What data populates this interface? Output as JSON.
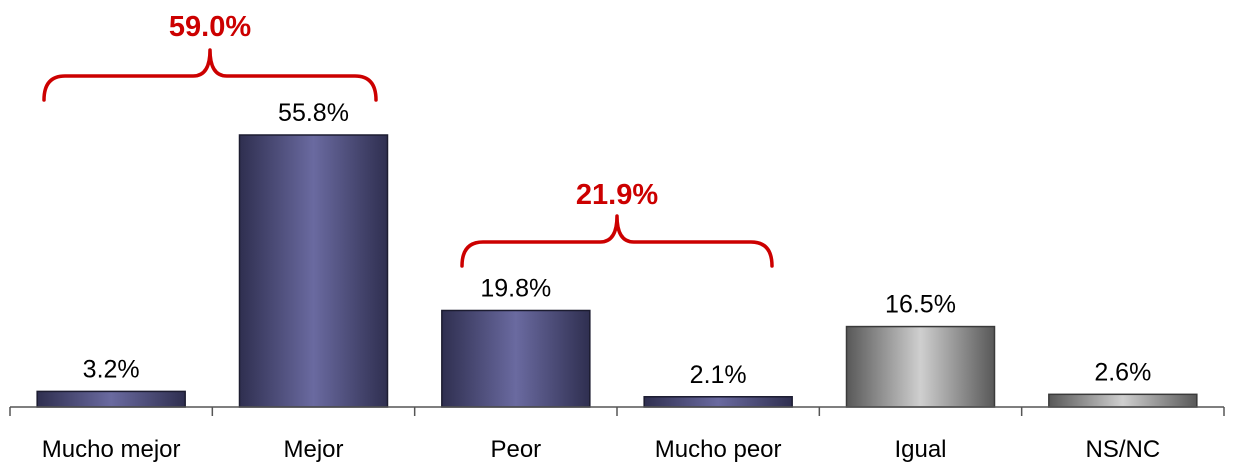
{
  "chart_data": {
    "type": "bar",
    "title": "",
    "xlabel": "",
    "ylabel": "",
    "categories": [
      "Mucho mejor",
      "Mejor",
      "Peor",
      "Mucho peor",
      "Igual",
      "NS/NC"
    ],
    "values": [
      3.2,
      55.8,
      19.8,
      2.1,
      16.5,
      2.6
    ],
    "value_labels": [
      "3.2%",
      "55.8%",
      "19.8%",
      "2.1%",
      "16.5%",
      "2.6%"
    ],
    "bar_styles": [
      "blue",
      "blue",
      "blue",
      "blue",
      "grey",
      "grey"
    ],
    "ylim": [
      0,
      60
    ],
    "grid": false,
    "legend": "none",
    "groups": [
      {
        "label": "59.0%",
        "value": 59.0,
        "categories": [
          "Mucho mejor",
          "Mejor"
        ]
      },
      {
        "label": "21.9%",
        "value": 21.9,
        "categories": [
          "Peor",
          "Mucho peor"
        ]
      }
    ],
    "colors": {
      "bar_blue_edge": "#2f2f50",
      "bar_blue_mid": "#6a6aa0",
      "bar_grey_edge": "#585858",
      "bar_grey_mid": "#cfcfcf",
      "annotation": "#cc0000",
      "axis": "#555555"
    }
  }
}
